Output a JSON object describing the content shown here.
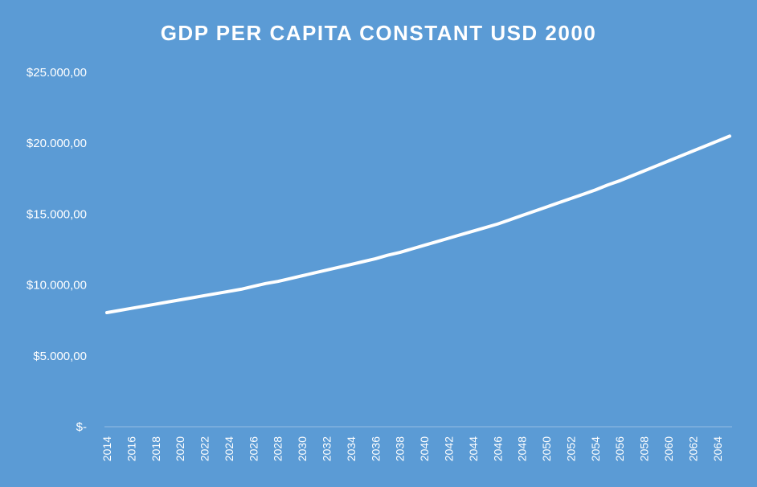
{
  "chart_data": {
    "type": "area",
    "title": "GDP PER CAPITA CONSTANT USD 2000",
    "xlabel": "",
    "ylabel": "",
    "ylim": [
      0,
      25000
    ],
    "y_ticks": [
      0,
      5000,
      10000,
      15000,
      20000,
      25000
    ],
    "y_tick_labels": [
      "$-",
      "$5.000,00",
      "$10.000,00",
      "$15.000,00",
      "$20.000,00",
      "$25.000,00"
    ],
    "x_tick_labels": [
      "2014",
      "2016",
      "2018",
      "2020",
      "2022",
      "2024",
      "2026",
      "2028",
      "2030",
      "2032",
      "2034",
      "2036",
      "2038",
      "2040",
      "2042",
      "2044",
      "2046",
      "2048",
      "2050",
      "2052",
      "2054",
      "2056",
      "2058",
      "2060",
      "2062",
      "2064"
    ],
    "grid": false,
    "legend": "none",
    "colors": {
      "background": "#5b9bd5",
      "line": "#ffffff",
      "fill_top": "#ffffff"
    },
    "x": [
      2014,
      2015,
      2016,
      2017,
      2018,
      2019,
      2020,
      2021,
      2022,
      2023,
      2024,
      2025,
      2026,
      2027,
      2028,
      2029,
      2030,
      2031,
      2032,
      2033,
      2034,
      2035,
      2036,
      2037,
      2038,
      2039,
      2040,
      2041,
      2042,
      2043,
      2044,
      2045,
      2046,
      2047,
      2048,
      2049,
      2050,
      2051,
      2052,
      2053,
      2054,
      2055,
      2056,
      2057,
      2058,
      2059,
      2060,
      2061,
      2062,
      2063,
      2064,
      2065
    ],
    "values": [
      8050,
      8200,
      8350,
      8500,
      8650,
      8800,
      8950,
      9100,
      9250,
      9400,
      9550,
      9700,
      9900,
      10100,
      10250,
      10450,
      10650,
      10850,
      11050,
      11250,
      11450,
      11650,
      11850,
      12100,
      12300,
      12550,
      12800,
      13050,
      13300,
      13550,
      13800,
      14050,
      14300,
      14600,
      14900,
      15200,
      15500,
      15800,
      16100,
      16400,
      16700,
      17050,
      17350,
      17700,
      18050,
      18400,
      18750,
      19100,
      19450,
      19800,
      20150,
      20500
    ]
  }
}
